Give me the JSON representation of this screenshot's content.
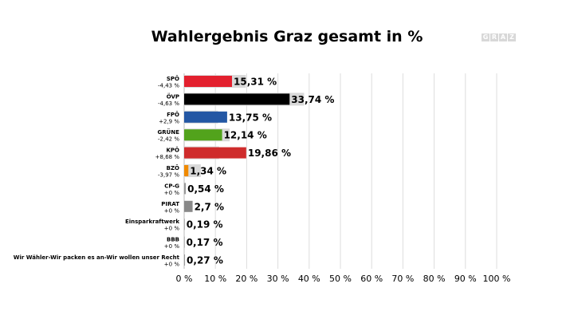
{
  "chart_data": {
    "type": "bar",
    "orientation": "horizontal",
    "title": "Wahlergebnis Graz gesamt in %",
    "logo_text": "GRAZ",
    "categories": [
      "SPÖ",
      "ÖVP",
      "FPÖ",
      "GRÜNE",
      "KPÖ",
      "BZÖ",
      "CP-G",
      "PIRAT",
      "Einsparkraftwerk",
      "BBB",
      "Wir Wähler-Wir packen es an-Wir wollen unser Recht"
    ],
    "changes": [
      "-4,43 %",
      "-4,63 %",
      "+2,9 %",
      "-2,42 %",
      "+8,68 %",
      "-3,97 %",
      "+0 %",
      "+0 %",
      "+0 %",
      "+0 %",
      "+0 %"
    ],
    "values": [
      15.31,
      33.74,
      13.75,
      12.14,
      19.86,
      1.34,
      0.54,
      2.7,
      0.19,
      0.17,
      0.27
    ],
    "value_labels": [
      "15,31 %",
      "33,74 %",
      "13,75 %",
      "12,14 %",
      "19,86 %",
      "1,34 %",
      "0,54 %",
      "2,7 %",
      "0,19 %",
      "0,17 %",
      "0,27 %"
    ],
    "previous_values": [
      19.74,
      38.37,
      10.85,
      14.56,
      11.18,
      5.31,
      0,
      0,
      0,
      0,
      0
    ],
    "colors": [
      "#e3202e",
      "#000000",
      "#2357a4",
      "#52a31c",
      "#cf2c2c",
      "#f08a00",
      "#999999",
      "#888888",
      "#999999",
      "#999999",
      "#999999"
    ],
    "previous_color": "#d9d9d9",
    "xticks": [
      "0 %",
      "10 %",
      "20 %",
      "30 %",
      "40 %",
      "50 %",
      "60 %",
      "70 %",
      "80 %",
      "90 %",
      "100 %"
    ],
    "xlim": [
      0,
      100
    ],
    "grid": true
  }
}
